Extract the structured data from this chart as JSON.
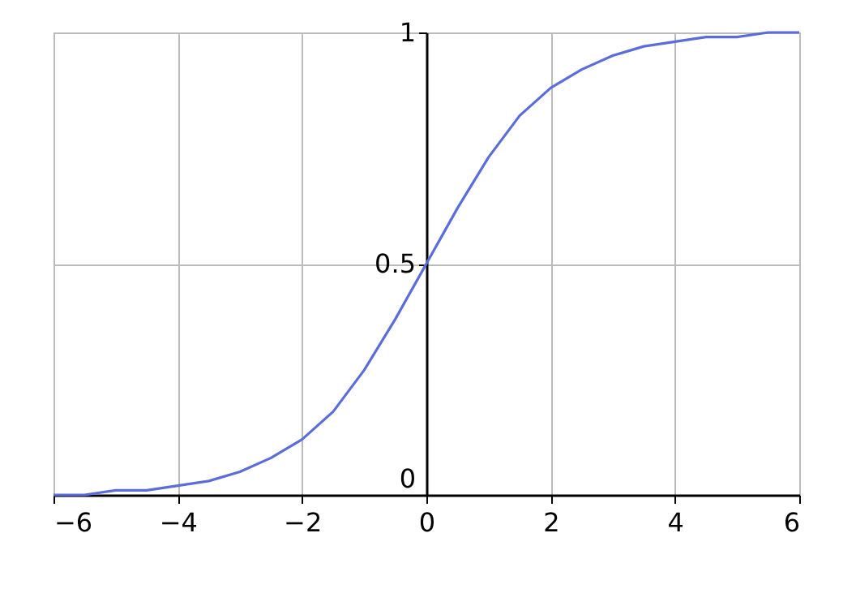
{
  "chart_data": {
    "type": "line",
    "x": [
      -6,
      -5.5,
      -5,
      -4.5,
      -4,
      -3.5,
      -3,
      -2.5,
      -2,
      -1.5,
      -1,
      -0.5,
      0,
      0.5,
      1,
      1.5,
      2,
      2.5,
      3,
      3.5,
      4,
      4.5,
      5,
      5.5,
      6
    ],
    "series": [
      {
        "color": "#5b6ddb",
        "values": [
          0.0,
          0.0,
          0.01,
          0.01,
          0.02,
          0.03,
          0.05,
          0.08,
          0.12,
          0.18,
          0.27,
          0.38,
          0.5,
          0.62,
          0.73,
          0.82,
          0.88,
          0.92,
          0.95,
          0.97,
          0.98,
          0.99,
          0.99,
          1.0,
          1.0
        ]
      }
    ],
    "xlim": [
      -6,
      6
    ],
    "ylim": [
      0,
      1
    ],
    "xticks": [
      -6,
      -4,
      -2,
      0,
      2,
      4,
      6
    ],
    "yticks": [
      0,
      0.5,
      1
    ],
    "grid": true
  }
}
